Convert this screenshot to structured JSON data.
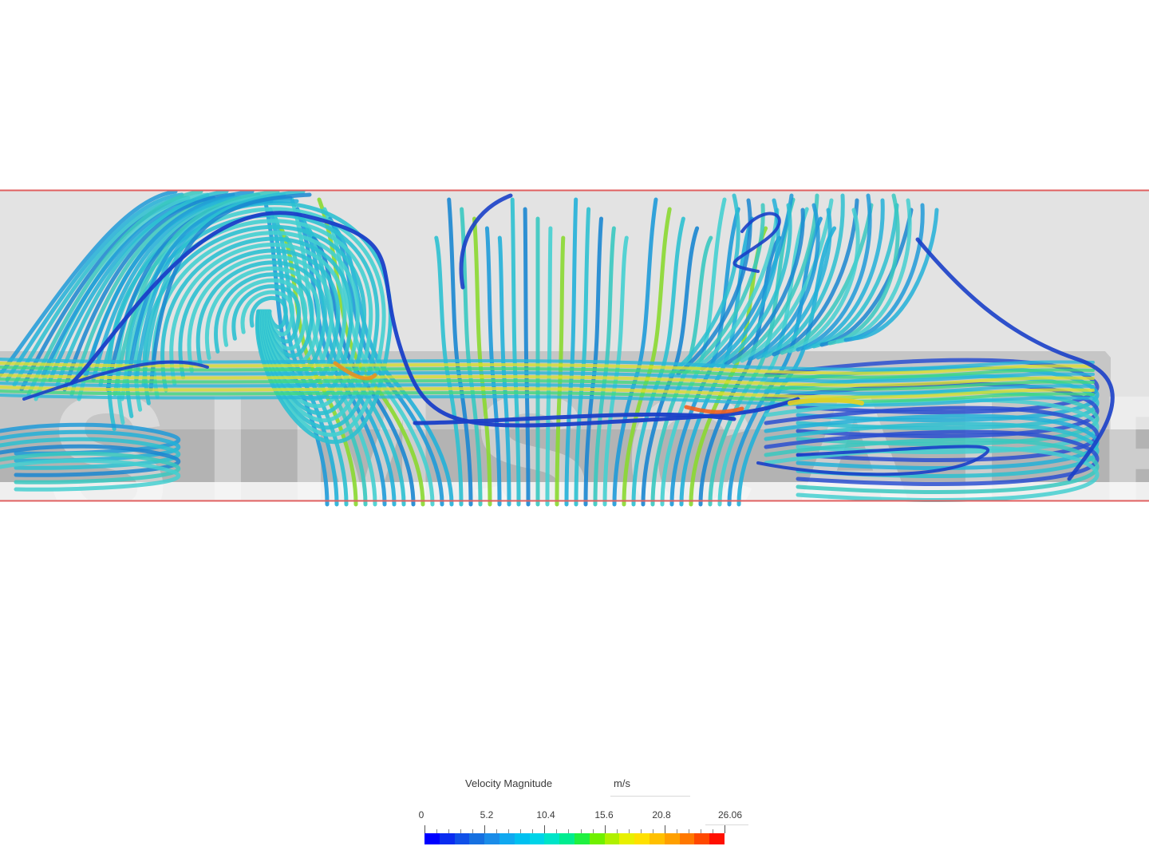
{
  "legend": {
    "title": "Velocity Magnitude",
    "unit": "m/s",
    "range": [
      0,
      26.06
    ],
    "tick_labels": [
      "0",
      "5.2",
      "10.4",
      "15.6",
      "20.8",
      "26.06"
    ],
    "colormap": [
      "#0000ff",
      "#0a2cf0",
      "#1050e8",
      "#1670e0",
      "#1a8ce8",
      "#10a8f0",
      "#00c0f0",
      "#00d4e8",
      "#00e4c8",
      "#00ec90",
      "#20f040",
      "#70f000",
      "#b0f000",
      "#e8f000",
      "#ffe000",
      "#ffc000",
      "#ffa000",
      "#ff7800",
      "#ff4800",
      "#ff1000"
    ]
  },
  "watermark": "SIMSCALE",
  "colors": {
    "domain_outline": "#e06060",
    "wall_light": "#e4e4e4",
    "wall_dark": "#bdbdbd",
    "slow_streamline": "#1a3fc8",
    "mid_streamline": "#1e9ad8",
    "fast_streamline": "#30d8c0",
    "hot_streamline": "#e8d020"
  }
}
